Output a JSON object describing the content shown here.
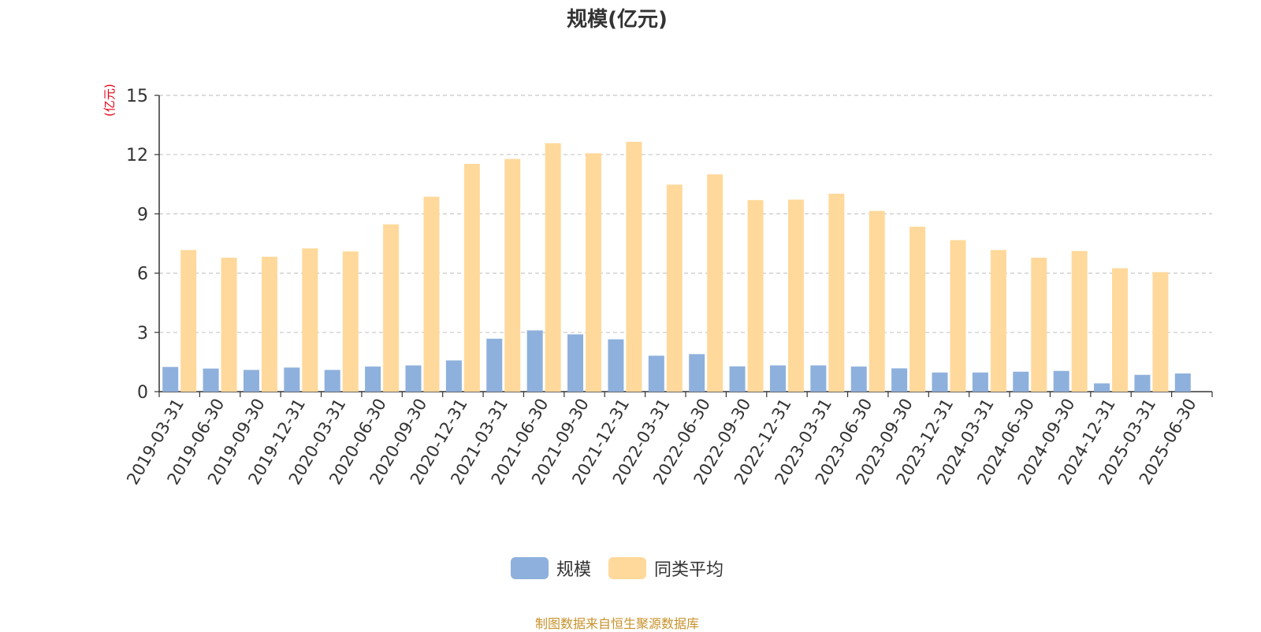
{
  "chart_data": {
    "type": "bar",
    "title": "规模(亿元)",
    "ylabel": "(亿元)",
    "xlabel": "",
    "ylim": [
      0,
      15
    ],
    "yticks": [
      0,
      3,
      6,
      9,
      12,
      15
    ],
    "grid": true,
    "legend_position": "bottom",
    "categories": [
      "2019-03-31",
      "2019-06-30",
      "2019-09-30",
      "2019-12-31",
      "2020-03-31",
      "2020-06-30",
      "2020-09-30",
      "2020-12-31",
      "2021-03-31",
      "2021-06-30",
      "2021-09-30",
      "2021-12-31",
      "2022-03-31",
      "2022-06-30",
      "2022-09-30",
      "2022-12-31",
      "2023-03-31",
      "2023-06-30",
      "2023-09-30",
      "2023-12-31",
      "2024-03-31",
      "2024-06-30",
      "2024-09-30",
      "2024-12-31",
      "2025-03-31",
      "2025-06-30"
    ],
    "series": [
      {
        "name": "规模",
        "color": "#8eb0dc",
        "values": [
          1.25,
          1.17,
          1.1,
          1.22,
          1.1,
          1.27,
          1.33,
          1.58,
          2.68,
          3.1,
          2.9,
          2.65,
          1.82,
          1.9,
          1.28,
          1.33,
          1.33,
          1.27,
          1.18,
          0.97,
          0.97,
          1.01,
          1.05,
          0.42,
          0.85,
          0.92
        ]
      },
      {
        "name": "同类平均",
        "color": "#ffd99b",
        "values": [
          7.17,
          6.78,
          6.83,
          7.25,
          7.1,
          8.47,
          9.87,
          11.53,
          11.78,
          12.58,
          12.07,
          12.65,
          10.48,
          11.0,
          9.7,
          9.72,
          10.02,
          9.15,
          8.35,
          7.67,
          7.17,
          6.78,
          7.12,
          6.25,
          6.05,
          null
        ]
      }
    ]
  },
  "footer": {
    "source_note": "制图数据来自恒生聚源数据库"
  }
}
